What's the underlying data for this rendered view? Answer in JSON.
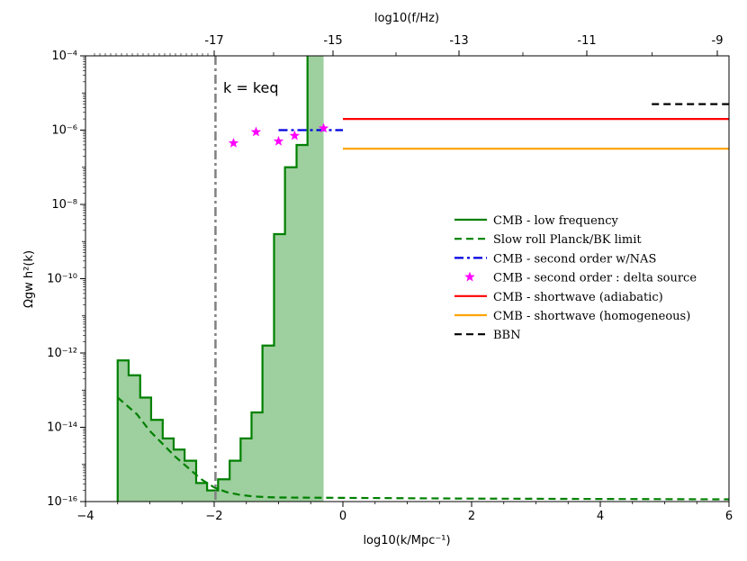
{
  "chart_data": {
    "type": "line",
    "xlabel": "log10(k/Mpc⁻¹)",
    "ylabel": "Ωgw h²(k)",
    "top_xlabel": "log10(f/Hz)",
    "xlim": [
      -4,
      6
    ],
    "ylim_log10": [
      -16,
      -4
    ],
    "y_scale": "log",
    "x_ticks": [
      "−4",
      "−2",
      "0",
      "2",
      "4",
      "6"
    ],
    "top_ticks": [
      "-17",
      "-15",
      "-13",
      "-11",
      "-9"
    ],
    "y_ticks": [
      "10⁻¹⁶",
      "10⁻¹⁴",
      "10⁻¹²",
      "10⁻¹⁰",
      "10⁻⁸",
      "10⁻⁶",
      "10⁻⁴"
    ],
    "annotation": "k = keq",
    "keq_x": -1.98,
    "legend_position": "center-right",
    "series": [
      {
        "name": "CMB - low frequency",
        "color": "#008000",
        "style": "step-filled",
        "x_edges": [
          -3.5,
          -3.33,
          -3.15,
          -2.98,
          -2.8,
          -2.63,
          -2.46,
          -2.28,
          -2.11,
          -1.94,
          -1.76,
          -1.59,
          -1.42,
          -1.25,
          -1.07,
          -0.9,
          -0.72,
          -0.55,
          -0.3
        ],
        "log10_y": [
          -12.2,
          -12.6,
          -13.2,
          -13.8,
          -14.3,
          -14.6,
          -14.9,
          -15.5,
          -15.7,
          -15.4,
          -14.9,
          -14.3,
          -13.6,
          -11.8,
          -8.8,
          -7.0,
          -6.4,
          -4.0
        ]
      },
      {
        "name": "Slow roll Planck/BK limit",
        "color": "#008000",
        "style": "dashed",
        "x": [
          -3.5,
          -3.2,
          -3.0,
          -2.8,
          -2.6,
          -2.4,
          -2.2,
          -2.0,
          -1.8,
          -1.6,
          -1.4,
          -1.2,
          -1.0,
          0,
          2,
          4,
          6
        ],
        "log10_y": [
          -13.2,
          -13.65,
          -14.1,
          -14.45,
          -14.8,
          -15.1,
          -15.4,
          -15.62,
          -15.75,
          -15.82,
          -15.86,
          -15.88,
          -15.89,
          -15.9,
          -15.92,
          -15.93,
          -15.94
        ]
      },
      {
        "name": "CMB - second order w/NAS",
        "color": "#0000e0",
        "style": "dash-dot",
        "x": [
          -1.0,
          0.0
        ],
        "log10_y": [
          -6.0,
          -6.0
        ]
      },
      {
        "name": "CMB - second order : delta source",
        "color": "#ff00ff",
        "style": "star-markers",
        "x": [
          -1.7,
          -1.35,
          -1.0,
          -0.75,
          -0.3
        ],
        "log10_y": [
          -6.35,
          -6.05,
          -6.3,
          -6.15,
          -5.95
        ]
      },
      {
        "name": "CMB - shortwave (adiabatic)",
        "color": "#ff0000",
        "style": "solid",
        "x": [
          0.0,
          6.0
        ],
        "log10_y": [
          -5.7,
          -5.7
        ]
      },
      {
        "name": "CMB - shortwave (homogeneous)",
        "color": "#ffa500",
        "style": "solid",
        "x": [
          0.0,
          6.0
        ],
        "log10_y": [
          -6.5,
          -6.5
        ]
      },
      {
        "name": "BBN",
        "color": "#000000",
        "style": "dashed",
        "x": [
          4.8,
          6.0
        ],
        "log10_y": [
          -5.3,
          -5.3
        ]
      }
    ]
  }
}
